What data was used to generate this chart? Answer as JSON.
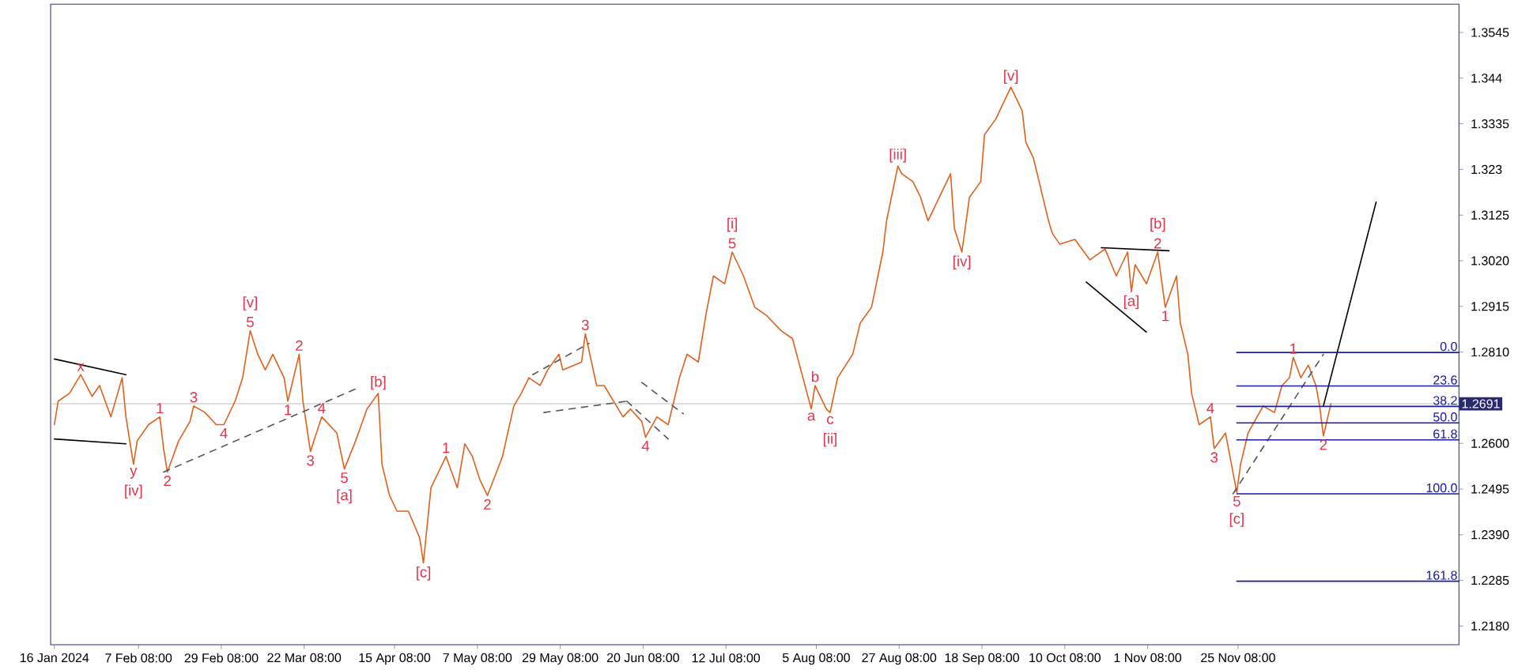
{
  "chart_data": {
    "type": "line",
    "xlim": [
      "2024-01-15",
      "2025-01-23"
    ],
    "ylim": [
      1.2137,
      1.361
    ],
    "xticks": [
      {
        "value": "2024-01-16",
        "label": "16 Jan 2024"
      },
      {
        "value": "2024-02-07T08:00",
        "label": "7 Feb 08:00"
      },
      {
        "value": "2024-02-29T08:00",
        "label": "29 Feb 08:00"
      },
      {
        "value": "2024-03-22T08:00",
        "label": "22 Mar 08:00"
      },
      {
        "value": "2024-04-15T08:00",
        "label": "15 Apr 08:00"
      },
      {
        "value": "2024-05-07T08:00",
        "label": "7 May 08:00"
      },
      {
        "value": "2024-05-29T08:00",
        "label": "29 May 08:00"
      },
      {
        "value": "2024-06-20T08:00",
        "label": "20 Jun 08:00"
      },
      {
        "value": "2024-07-12T08:00",
        "label": "12 Jul 08:00"
      },
      {
        "value": "2024-08-05T08:00",
        "label": "5 Aug 08:00"
      },
      {
        "value": "2024-08-27T08:00",
        "label": "27 Aug 08:00"
      },
      {
        "value": "2024-09-18T08:00",
        "label": "18 Sep 08:00"
      },
      {
        "value": "2024-10-10T08:00",
        "label": "10 Oct 08:00"
      },
      {
        "value": "2024-11-01T08:00",
        "label": "1 Nov 08:00"
      },
      {
        "value": "2024-11-25T08:00",
        "label": "25 Nov 08:00"
      }
    ],
    "yticks": [
      1.3545,
      1.344,
      1.3335,
      1.323,
      1.3125,
      {
        "value": 1.302,
        "label": "1.3020"
      },
      1.2915,
      {
        "value": 1.281,
        "label": "1.2810"
      },
      {
        "value": 1.2705,
        "label": null
      },
      {
        "value": 1.26,
        "label": "1.2600"
      },
      1.2495,
      {
        "value": 1.239,
        "label": "1.2390"
      },
      1.2285,
      {
        "value": 1.218,
        "label": "1.2180"
      }
    ],
    "series": [
      {
        "color": "#e0601c",
        "line_style": "solid",
        "x": [
          "2024-01-16",
          "2024-01-17",
          "2024-01-20",
          "2024-01-23",
          "2024-01-26",
          "2024-01-28",
          "2024-01-31",
          "2024-02-03",
          "2024-02-04",
          "2024-02-06",
          "2024-02-07",
          "2024-02-10",
          "2024-02-13",
          "2024-02-14",
          "2024-02-15",
          "2024-02-18",
          "2024-02-21",
          "2024-02-22",
          "2024-02-25",
          "2024-02-28",
          "2024-03-01",
          "2024-03-04",
          "2024-03-06",
          "2024-03-08",
          "2024-03-10",
          "2024-03-12",
          "2024-03-14",
          "2024-03-17",
          "2024-03-18",
          "2024-03-19",
          "2024-03-21",
          "2024-03-22",
          "2024-03-24",
          "2024-03-27",
          "2024-03-31",
          "2024-04-02",
          "2024-04-05",
          "2024-04-08",
          "2024-04-11",
          "2024-04-12",
          "2024-04-14",
          "2024-04-16",
          "2024-04-19",
          "2024-04-22",
          "2024-04-23",
          "2024-04-25",
          "2024-04-27",
          "2024-04-29",
          "2024-05-02",
          "2024-05-04",
          "2024-05-06",
          "2024-05-08",
          "2024-05-10",
          "2024-05-14",
          "2024-05-17",
          "2024-05-19",
          "2024-05-21",
          "2024-05-24",
          "2024-05-26",
          "2024-05-29",
          "2024-05-30",
          "2024-06-04",
          "2024-06-05",
          "2024-06-08",
          "2024-06-10",
          "2024-06-15",
          "2024-06-17",
          "2024-06-20",
          "2024-06-21",
          "2024-06-24",
          "2024-06-27",
          "2024-06-30",
          "2024-07-02",
          "2024-07-05",
          "2024-07-07",
          "2024-07-09",
          "2024-07-12",
          "2024-07-14",
          "2024-07-17",
          "2024-07-20",
          "2024-07-23",
          "2024-07-27",
          "2024-07-30",
          "2024-08-04",
          "2024-08-05",
          "2024-08-08",
          "2024-08-09",
          "2024-08-11",
          "2024-08-15",
          "2024-08-17",
          "2024-08-20",
          "2024-08-23",
          "2024-08-24",
          "2024-08-27",
          "2024-08-28",
          "2024-08-31",
          "2024-09-02",
          "2024-09-04",
          "2024-09-07",
          "2024-09-10",
          "2024-09-11",
          "2024-09-13",
          "2024-09-15",
          "2024-09-18",
          "2024-09-19",
          "2024-09-22",
          "2024-09-25",
          "2024-09-26",
          "2024-09-29",
          "2024-09-30",
          "2024-10-02",
          "2024-10-03",
          "2024-10-06",
          "2024-10-07",
          "2024-10-09",
          "2024-10-13",
          "2024-10-17",
          "2024-10-21",
          "2024-10-24",
          "2024-10-27",
          "2024-10-28",
          "2024-10-29",
          "2024-11-01",
          "2024-11-04",
          "2024-11-06",
          "2024-11-09",
          "2024-11-10",
          "2024-11-12",
          "2024-11-13",
          "2024-11-15",
          "2024-11-18",
          "2024-11-19",
          "2024-11-22",
          "2024-11-25",
          "2024-11-26",
          "2024-11-28",
          "2024-12-02",
          "2024-12-05",
          "2024-12-07",
          "2024-12-09",
          "2024-12-10",
          "2024-12-12",
          "2024-12-14",
          "2024-12-16",
          "2024-12-17",
          "2024-12-18",
          "2024-12-20"
        ],
        "values": [
          1.2643,
          1.2697,
          1.2715,
          1.2758,
          1.2708,
          1.2733,
          1.2661,
          1.2751,
          1.2661,
          1.2552,
          1.2606,
          1.2643,
          1.2661,
          1.2588,
          1.2534,
          1.2606,
          1.265,
          1.2686,
          1.2671,
          1.2643,
          1.2643,
          1.2697,
          1.2751,
          1.2859,
          1.2805,
          1.2769,
          1.2805,
          1.2751,
          1.2697,
          1.2733,
          1.2805,
          1.2697,
          1.2581,
          1.2661,
          1.2624,
          1.2541,
          1.2606,
          1.2679,
          1.2715,
          1.2552,
          1.248,
          1.2444,
          1.2444,
          1.2383,
          1.2325,
          1.2498,
          1.2534,
          1.257,
          1.2498,
          1.2599,
          1.257,
          1.2516,
          1.248,
          1.257,
          1.2686,
          1.2715,
          1.2751,
          1.2733,
          1.2769,
          1.2805,
          1.2769,
          1.2787,
          1.2852,
          1.2733,
          1.2733,
          1.2661,
          1.2679,
          1.265,
          1.2614,
          1.2661,
          1.2643,
          1.2751,
          1.2805,
          1.2787,
          1.2895,
          1.2985,
          1.2967,
          1.304,
          1.2985,
          1.2913,
          1.2895,
          1.2859,
          1.2841,
          1.2679,
          1.2733,
          1.2679,
          1.2671,
          1.2751,
          1.2805,
          1.2877,
          1.2913,
          1.304,
          1.3112,
          1.3238,
          1.322,
          1.3202,
          1.3166,
          1.3112,
          1.3166,
          1.322,
          1.3094,
          1.304,
          1.3166,
          1.3202,
          1.331,
          1.3346,
          1.3401,
          1.3419,
          1.3365,
          1.3292,
          1.3256,
          1.322,
          1.3112,
          1.3083,
          1.3058,
          1.3069,
          1.3022,
          1.3047,
          1.2985,
          1.304,
          1.2949,
          1.3011,
          1.2967,
          1.304,
          1.2913,
          1.2985,
          1.2877,
          1.2805,
          1.2715,
          1.2643,
          1.2661,
          1.2588,
          1.2624,
          1.2487,
          1.2552,
          1.2624,
          1.2686,
          1.2671,
          1.2733,
          1.2751,
          1.2798,
          1.2751,
          1.278,
          1.2733,
          1.2686,
          1.2617,
          1.2691
        ]
      },
      {
        "color": "#000000",
        "line_style": "solid",
        "x": [
          "2024-01-16",
          "2024-02-04"
        ],
        "values": [
          1.2794,
          1.2758
        ]
      },
      {
        "color": "#000000",
        "line_style": "solid",
        "x": [
          "2024-01-16",
          "2024-02-04"
        ],
        "values": [
          1.261,
          1.2599
        ]
      },
      {
        "color": "#555555",
        "line_style": "dashed",
        "x": [
          "2024-02-14",
          "2024-04-06"
        ],
        "values": [
          1.2534,
          1.2729
        ]
      },
      {
        "color": "#555555",
        "line_style": "dashed",
        "x": [
          "2024-05-22",
          "2024-06-06"
        ],
        "values": [
          1.2758,
          1.283
        ]
      },
      {
        "color": "#555555",
        "line_style": "dashed",
        "x": [
          "2024-05-25",
          "2024-06-16"
        ],
        "values": [
          1.2671,
          1.2697
        ]
      },
      {
        "color": "#555555",
        "line_style": "dashed",
        "x": [
          "2024-06-16",
          "2024-06-27"
        ],
        "values": [
          1.2697,
          1.261
        ]
      },
      {
        "color": "#555555",
        "line_style": "dashed",
        "x": [
          "2024-06-20",
          "2024-07-01"
        ],
        "values": [
          1.274,
          1.2668
        ]
      },
      {
        "color": "#000000",
        "line_style": "solid",
        "x": [
          "2024-10-16",
          "2024-11-01"
        ],
        "values": [
          1.2971,
          1.2856
        ]
      },
      {
        "color": "#000000",
        "line_style": "solid",
        "x": [
          "2024-10-20",
          "2024-11-07"
        ],
        "values": [
          1.305,
          1.3043
        ]
      },
      {
        "color": "#555555",
        "line_style": "dashed",
        "x": [
          "2024-11-24",
          "2024-12-18"
        ],
        "values": [
          1.2484,
          1.2805
        ]
      },
      {
        "color": "#000000",
        "line_style": "solid",
        "x": [
          "2024-12-18",
          "2025-01-01"
        ],
        "values": [
          1.2686,
          1.3155
        ]
      },
      {
        "name": "0.0",
        "color": "#1c1ca0",
        "line_style": "solid",
        "x": [
          "2024-11-25",
          "2025-01-23"
        ],
        "values": [
          1.2809,
          1.2809
        ]
      },
      {
        "name": "23.6",
        "color": "#1c1ca0",
        "line_style": "solid",
        "x": [
          "2024-11-25",
          "2025-01-23"
        ],
        "values": [
          1.2732,
          1.2732
        ]
      },
      {
        "name": "38.2",
        "color": "#1c1ca0",
        "line_style": "solid",
        "x": [
          "2024-11-25",
          "2025-01-23"
        ],
        "values": [
          1.2685,
          1.2685
        ]
      },
      {
        "name": "50.0",
        "color": "#1c1ca0",
        "line_style": "solid",
        "x": [
          "2024-11-25",
          "2025-01-23"
        ],
        "values": [
          1.2647,
          1.2647
        ]
      },
      {
        "name": "61.8",
        "color": "#1c1ca0",
        "line_style": "solid",
        "x": [
          "2024-11-25",
          "2025-01-23"
        ],
        "values": [
          1.2608,
          1.2608
        ]
      },
      {
        "name": "100.0",
        "color": "#1c1ca0",
        "line_style": "solid",
        "x": [
          "2024-11-25",
          "2025-01-23"
        ],
        "values": [
          1.2484,
          1.2484
        ]
      },
      {
        "name": "161.8",
        "color": "#1c1ca0",
        "line_style": "solid",
        "x": [
          "2024-11-25",
          "2025-01-23"
        ],
        "values": [
          1.2283,
          1.2283
        ]
      }
    ],
    "ref_lines": [
      {
        "axis": "y",
        "value": 1.2691,
        "label": "1.2691",
        "color": "#c0c0c0"
      }
    ],
    "annotations": [
      {
        "text": "x",
        "x": "2024-01-23",
        "y": 1.2758
      },
      {
        "text": "y",
        "x": "2024-02-06",
        "y": 1.2552
      },
      {
        "text": "[iv]",
        "x": "2024-02-06",
        "y": 1.2552
      },
      {
        "text": "1",
        "x": "2024-02-13",
        "y": 1.2661
      },
      {
        "text": "2",
        "x": "2024-02-15",
        "y": 1.2534
      },
      {
        "text": "3",
        "x": "2024-02-22",
        "y": 1.2686
      },
      {
        "text": "4",
        "x": "2024-03-01",
        "y": 1.2643
      },
      {
        "text": "5",
        "x": "2024-03-08",
        "y": 1.2859
      },
      {
        "text": "[v]",
        "x": "2024-03-08",
        "y": 1.2859
      },
      {
        "text": "1",
        "x": "2024-03-18",
        "y": 1.2697
      },
      {
        "text": "2",
        "x": "2024-03-21",
        "y": 1.2805
      },
      {
        "text": "3",
        "x": "2024-03-24",
        "y": 1.2581
      },
      {
        "text": "4",
        "x": "2024-03-27",
        "y": 1.2661
      },
      {
        "text": "5",
        "x": "2024-04-02",
        "y": 1.2541
      },
      {
        "text": "[a]",
        "x": "2024-04-02",
        "y": 1.2541
      },
      {
        "text": "[b]",
        "x": "2024-04-11",
        "y": 1.2715
      },
      {
        "text": "[c]",
        "x": "2024-04-23",
        "y": 1.2325
      },
      {
        "text": "1",
        "x": "2024-04-29",
        "y": 1.257
      },
      {
        "text": "2",
        "x": "2024-05-10",
        "y": 1.248
      },
      {
        "text": "3",
        "x": "2024-06-05",
        "y": 1.2852
      },
      {
        "text": "4",
        "x": "2024-06-21",
        "y": 1.2614
      },
      {
        "text": "5",
        "x": "2024-07-14",
        "y": 1.304
      },
      {
        "text": "[i]",
        "x": "2024-07-14",
        "y": 1.304
      },
      {
        "text": "a",
        "x": "2024-08-04",
        "y": 1.2679
      },
      {
        "text": "b",
        "x": "2024-08-05",
        "y": 1.2733
      },
      {
        "text": "c",
        "x": "2024-08-09",
        "y": 1.2671
      },
      {
        "text": "[ii]",
        "x": "2024-08-09",
        "y": 1.2671
      },
      {
        "text": "[iii]",
        "x": "2024-08-27",
        "y": 1.3238
      },
      {
        "text": "[iv]",
        "x": "2024-09-13",
        "y": 1.304
      },
      {
        "text": "[v]",
        "x": "2024-09-26",
        "y": 1.3419
      },
      {
        "text": "[a]",
        "x": "2024-10-28",
        "y": 1.2949
      },
      {
        "text": "2",
        "x": "2024-11-04",
        "y": 1.304
      },
      {
        "text": "[b]",
        "x": "2024-11-04",
        "y": 1.304
      },
      {
        "text": "1",
        "x": "2024-11-06",
        "y": 1.2913
      },
      {
        "text": "4",
        "x": "2024-11-18",
        "y": 1.2661
      },
      {
        "text": "3",
        "x": "2024-11-19",
        "y": 1.2588
      },
      {
        "text": "5",
        "x": "2024-11-25",
        "y": 1.2487
      },
      {
        "text": "[c]",
        "x": "2024-11-25",
        "y": 1.2487
      },
      {
        "text": "1",
        "x": "2024-12-10",
        "y": 1.2798
      },
      {
        "text": "2",
        "x": "2024-12-18",
        "y": 1.2617
      }
    ]
  }
}
